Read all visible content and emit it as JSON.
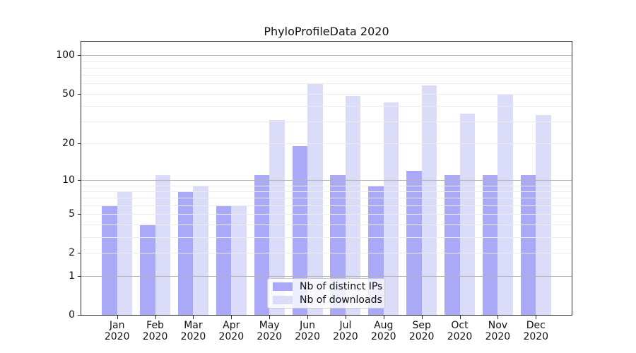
{
  "chart_data": {
    "type": "bar",
    "title": "PhyloProfileData 2020",
    "categories": [
      {
        "month": "Jan",
        "year": "2020"
      },
      {
        "month": "Feb",
        "year": "2020"
      },
      {
        "month": "Mar",
        "year": "2020"
      },
      {
        "month": "Apr",
        "year": "2020"
      },
      {
        "month": "May",
        "year": "2020"
      },
      {
        "month": "Jun",
        "year": "2020"
      },
      {
        "month": "Jul",
        "year": "2020"
      },
      {
        "month": "Aug",
        "year": "2020"
      },
      {
        "month": "Sep",
        "year": "2020"
      },
      {
        "month": "Oct",
        "year": "2020"
      },
      {
        "month": "Nov",
        "year": "2020"
      },
      {
        "month": "Dec",
        "year": "2020"
      }
    ],
    "series": [
      {
        "name": "Nb of distinct IPs",
        "color": "#a9a9f8",
        "values": [
          6,
          4,
          8,
          6,
          11,
          19,
          11,
          9,
          12,
          11,
          11,
          11
        ]
      },
      {
        "name": "Nb of downloads",
        "color": "#dbdbfa",
        "values": [
          8,
          11,
          9,
          6,
          31,
          60,
          48,
          43,
          58,
          35,
          50,
          34
        ]
      }
    ],
    "xlabel": "",
    "ylabel": "",
    "yscale": "log1p",
    "ylim": [
      0,
      128
    ],
    "yticks": [
      0,
      1,
      2,
      5,
      10,
      20,
      50,
      100
    ],
    "grid": {
      "major_lines": [
        1,
        10,
        100
      ],
      "minor_lines": [
        2,
        3,
        4,
        5,
        6,
        7,
        8,
        9,
        20,
        30,
        40,
        50,
        60,
        70,
        80,
        90
      ],
      "major_color": "#b3b3b3",
      "minor_color": "#ececec"
    },
    "legend_position": "lower-center-inside"
  }
}
